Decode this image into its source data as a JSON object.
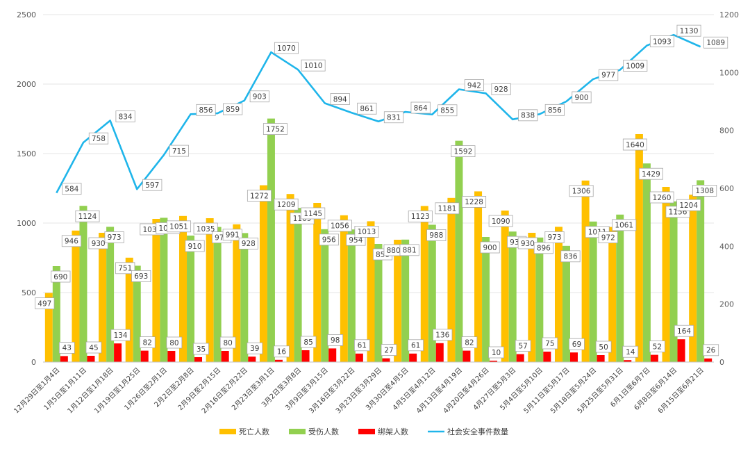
{
  "chart_data": {
    "type": "bar",
    "categories": [
      "12月29日至1月4日",
      "1月5日至1月11日",
      "1月12日至1月18日",
      "1月19日至1月25日",
      "1月26日至2月1日",
      "2月2日至2月8日",
      "2月9日至2月15日",
      "2月16日至2月22日",
      "2月23日至3月1日",
      "3月2日至3月8日",
      "3月9日至3月15日",
      "3月16日至3月22日",
      "3月23日至3月29日",
      "3月30日至4月5日",
      "4月5日至4月12日",
      "4月13日至4月19日",
      "4月20日至4月26日",
      "4月27日至5月3日",
      "5月4日至5月10日",
      "5月11日至5月17日",
      "5月18日至5月24日",
      "5月25日至5月31日",
      "6月1日至6月7日",
      "6月8日至6月14日",
      "6月15日至6月21日"
    ],
    "series": [
      {
        "name": "死亡人数",
        "axis": "left",
        "kind": "bar",
        "color": "#ffc000",
        "values": [
          497,
          946,
          930,
          751,
          1030,
          1051,
          1035,
          991,
          1272,
          1209,
          1145,
          1056,
          1013,
          880,
          1123,
          1181,
          1228,
          1090,
          930,
          973,
          1306,
          972,
          1640,
          1260,
          1204
        ]
      },
      {
        "name": "受伤人数",
        "axis": "left",
        "kind": "bar",
        "color": "#92d050",
        "values": [
          690,
          1124,
          973,
          693,
          1038,
          910,
          972,
          928,
          1752,
          1109,
          956,
          954,
          850,
          881,
          988,
          1592,
          900,
          939,
          896,
          836,
          1011,
          1061,
          1429,
          1156,
          1308
        ]
      },
      {
        "name": "绑架人数",
        "axis": "left",
        "kind": "bar",
        "color": "#ff0000",
        "values": [
          43,
          45,
          134,
          82,
          80,
          35,
          80,
          39,
          16,
          85,
          98,
          61,
          27,
          61,
          136,
          82,
          10,
          57,
          75,
          69,
          50,
          14,
          52,
          164,
          26
        ]
      },
      {
        "name": "社会安全事件数量",
        "axis": "right",
        "kind": "line",
        "color": "#1fb5ea",
        "values": [
          584,
          758,
          834,
          597,
          715,
          856,
          859,
          903,
          1070,
          1010,
          894,
          861,
          831,
          864,
          855,
          942,
          928,
          838,
          856,
          900,
          977,
          1009,
          1093,
          1130,
          1089
        ]
      }
    ],
    "y_left": {
      "min": 0,
      "max": 2500,
      "ticks": [
        "0",
        "500",
        "1000",
        "1500",
        "2000",
        "2500"
      ]
    },
    "y_right": {
      "min": 0,
      "max": 1200,
      "ticks": [
        "0",
        "200",
        "400",
        "600",
        "800",
        "1000",
        "1200"
      ]
    },
    "grid": true,
    "legend": "bottom"
  }
}
